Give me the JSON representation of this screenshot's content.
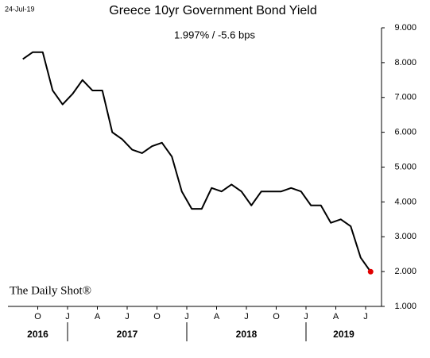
{
  "chart_data": {
    "type": "line",
    "title": "Greece 10yr Government Bond Yield",
    "subtitle": "1.997%  /  -5.6 bps",
    "date_label": "24-Jul-19",
    "watermark": "The Daily Shot®",
    "series": [
      {
        "name": "Greece 10yr",
        "color": "#000000",
        "end_marker_color": "#e00000",
        "x": [
          "2016-08",
          "2016-09",
          "2016-10",
          "2016-11",
          "2016-12",
          "2017-01",
          "2017-02",
          "2017-03",
          "2017-04",
          "2017-05",
          "2017-06",
          "2017-07",
          "2017-08",
          "2017-09",
          "2017-10",
          "2017-11",
          "2017-12",
          "2018-01",
          "2018-02",
          "2018-03",
          "2018-04",
          "2018-05",
          "2018-06",
          "2018-07",
          "2018-08",
          "2018-09",
          "2018-10",
          "2018-11",
          "2018-12",
          "2019-01",
          "2019-02",
          "2019-03",
          "2019-04",
          "2019-05",
          "2019-06",
          "2019-07"
        ],
        "values": [
          8.1,
          8.3,
          8.3,
          7.2,
          6.8,
          7.1,
          7.5,
          7.2,
          7.2,
          6.0,
          5.8,
          5.5,
          5.4,
          5.6,
          5.7,
          5.3,
          4.3,
          3.8,
          3.8,
          4.4,
          4.3,
          4.5,
          4.3,
          3.9,
          4.3,
          4.3,
          4.3,
          4.4,
          4.3,
          3.9,
          3.9,
          3.4,
          3.5,
          3.3,
          2.4,
          1.997
        ]
      }
    ],
    "ylim": [
      1,
      9
    ],
    "yticks": [
      {
        "value": 1,
        "label": "1.000"
      },
      {
        "value": 2,
        "label": "2.000"
      },
      {
        "value": 3,
        "label": "3.000"
      },
      {
        "value": 4,
        "label": "4.000"
      },
      {
        "value": 5,
        "label": "5.000"
      },
      {
        "value": 6,
        "label": "6.000"
      },
      {
        "value": 7,
        "label": "7.000"
      },
      {
        "value": 8,
        "label": "8.000"
      },
      {
        "value": 9,
        "label": "9.000"
      }
    ],
    "xticks": [
      {
        "value": "2016-10",
        "label": "O"
      },
      {
        "value": "2017-01",
        "label": "J"
      },
      {
        "value": "2017-04",
        "label": "A"
      },
      {
        "value": "2017-07",
        "label": "J"
      },
      {
        "value": "2017-10",
        "label": "O"
      },
      {
        "value": "2018-01",
        "label": "J"
      },
      {
        "value": "2018-04",
        "label": "A"
      },
      {
        "value": "2018-07",
        "label": "J"
      },
      {
        "value": "2018-10",
        "label": "O"
      },
      {
        "value": "2019-01",
        "label": "J"
      },
      {
        "value": "2019-04",
        "label": "A"
      },
      {
        "value": "2019-07",
        "label": "J"
      }
    ],
    "years": [
      "2016",
      "2017",
      "2018",
      "2019"
    ]
  }
}
